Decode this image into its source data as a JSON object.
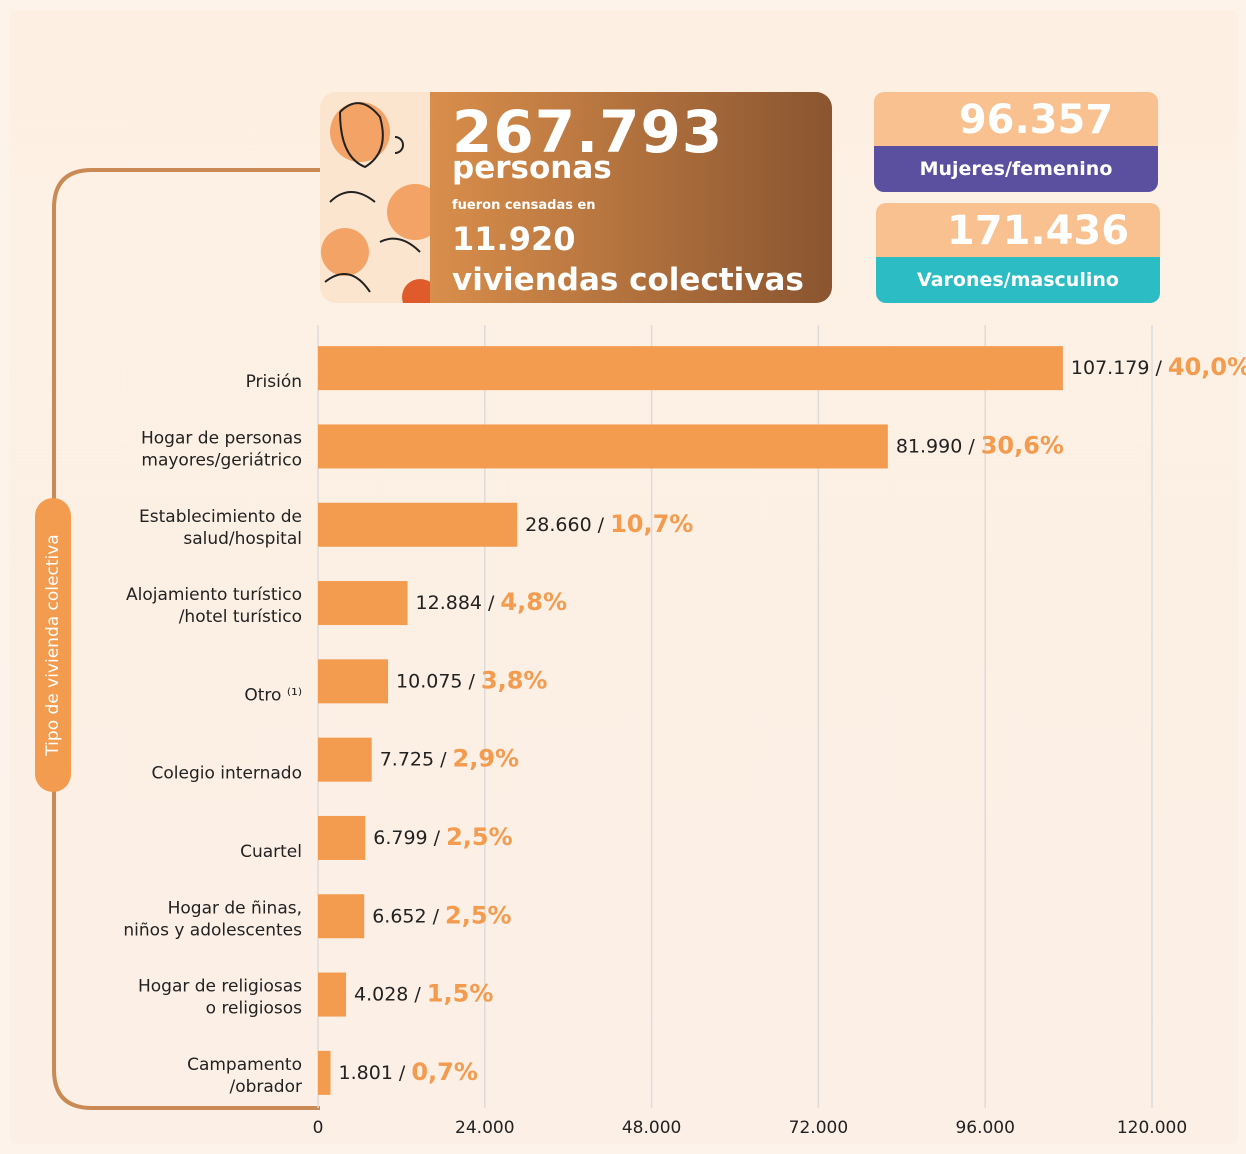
{
  "summary": {
    "total": "267.793",
    "total_unit": "personas",
    "connector": "fueron censadas en",
    "dwellings": "11.920",
    "dwellings_unit": "viviendas colectivas",
    "women": {
      "value": "96.357",
      "label": "Mujeres/femenino"
    },
    "men": {
      "value": "171.436",
      "label": "Varones/masculino"
    }
  },
  "chart_data": {
    "type": "bar",
    "orientation": "horizontal",
    "y_label": "Tipo de vivienda colectiva",
    "categories": [
      "Prisión",
      "Hogar de personas\nmayores/geriátrico",
      "Establecimiento de\nsalud/hospital",
      "Alojamiento turístico\n/hotel turístico",
      "Otro ⁽¹⁾",
      "Colegio internado",
      "Cuartel",
      "Hogar de ñinas,\nniños y adolescentes",
      "Hogar de religiosas\no religiosos",
      "Campamento\n/obrador"
    ],
    "values": [
      107179,
      81990,
      28660,
      12884,
      10075,
      7725,
      6799,
      6652,
      4028,
      1801
    ],
    "value_labels": [
      "107.179",
      "81.990",
      "28.660",
      "12.884",
      "10.075",
      "7.725",
      "6.799",
      "6.652",
      "4.028",
      "1.801"
    ],
    "label_separator": "/",
    "share_labels": [
      "40,0%",
      "30,6%",
      "10,7%",
      "4,8%",
      "3,8%",
      "2,9%",
      "2,5%",
      "2,5%",
      "1,5%",
      "0,7%"
    ],
    "color": "#f39b4e",
    "share_color": "#f39b4e",
    "xlim": [
      0,
      120000
    ],
    "xticks": [
      0,
      {
        "value": 24000,
        "label": "24.000"
      },
      {
        "value": 48000,
        "label": "48.000"
      },
      {
        "value": 72000,
        "label": "72.000"
      },
      {
        "value": 96000,
        "label": "96.000"
      },
      {
        "value": 120000,
        "label": "120.000"
      }
    ],
    "grid": true
  }
}
